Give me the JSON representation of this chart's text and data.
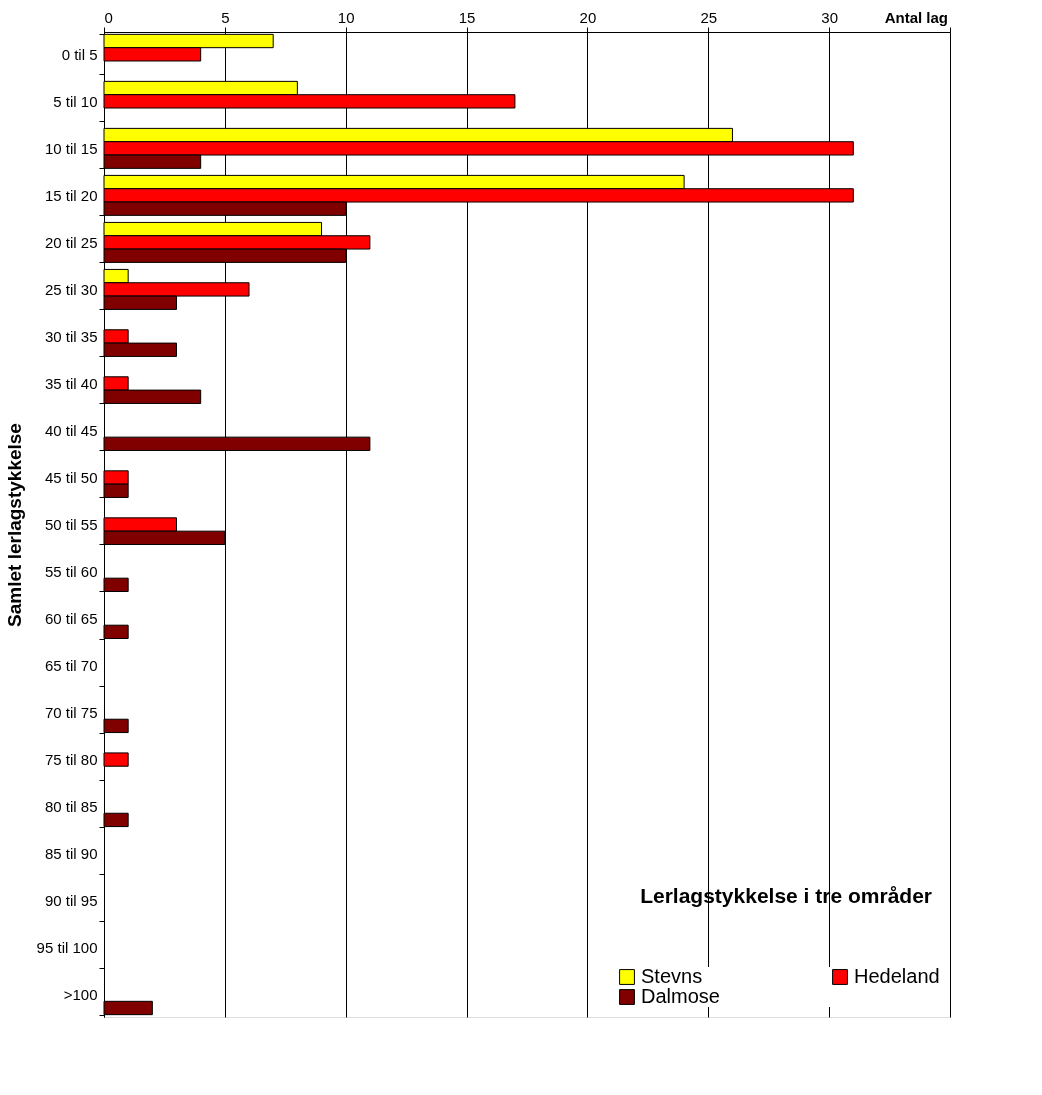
{
  "chart_data": {
    "type": "bar",
    "orientation": "horizontal",
    "title": "Lerlagstykkelse i tre områder",
    "xlabel": "Antal lag",
    "ylabel": "Samlet lerlagstykkelse",
    "categories": [
      "0 til 5",
      "5 til 10",
      "10 til 15",
      "15 til 20",
      "20 til 25",
      "25 til 30",
      "30 til 35",
      "35 til 40",
      "40 til 45",
      "45 til 50",
      "50 til 55",
      "55 til 60",
      "60 til 65",
      "65 til 70",
      "70 til 75",
      "75 til 80",
      "80 til 85",
      "85 til 90",
      "90 til 95",
      "95 til 100",
      ">100"
    ],
    "series": [
      {
        "name": "Stevns",
        "color": "#ffff00",
        "values": [
          7,
          8,
          26,
          24,
          9,
          1,
          null,
          null,
          null,
          null,
          null,
          null,
          null,
          null,
          null,
          null,
          null,
          null,
          null,
          null,
          null
        ]
      },
      {
        "name": "Hedeland",
        "color": "#ff0000",
        "values": [
          4,
          17,
          31,
          31,
          11,
          6,
          1,
          1,
          null,
          1,
          3,
          null,
          null,
          null,
          null,
          1,
          null,
          null,
          null,
          null,
          null
        ]
      },
      {
        "name": "Dalmose",
        "color": "#800000",
        "values": [
          null,
          null,
          4,
          10,
          10,
          3,
          3,
          4,
          11,
          1,
          5,
          1,
          1,
          null,
          1,
          null,
          1,
          null,
          null,
          null,
          2
        ]
      }
    ],
    "xlim": [
      0,
      35
    ],
    "xticks": [
      0,
      5,
      10,
      15,
      20,
      25,
      30,
      {
        "value": 35,
        "label": null
      }
    ],
    "grid": "x",
    "legend": "bottom right"
  }
}
